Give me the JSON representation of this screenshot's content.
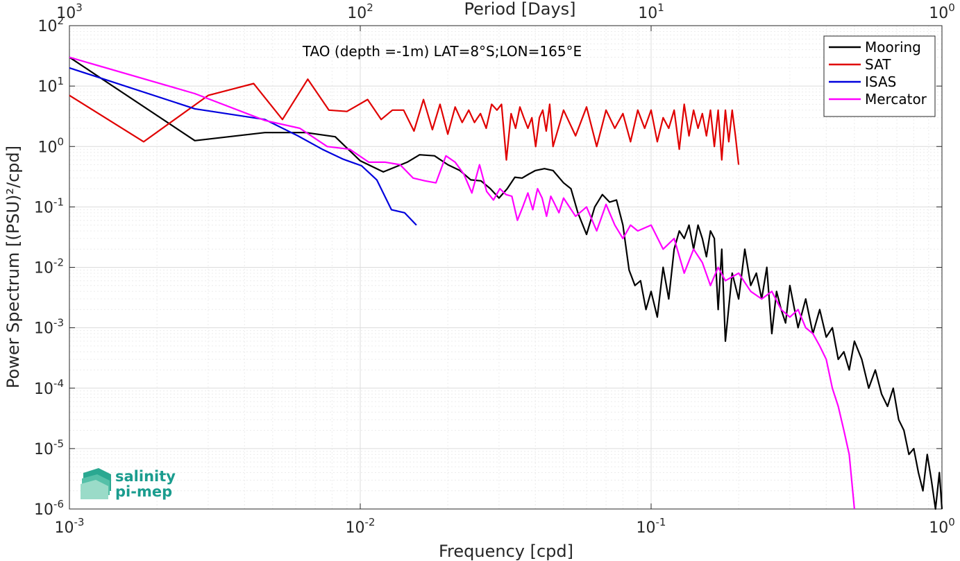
{
  "chart_data": {
    "type": "line",
    "title": "TAO (depth =-1m) LAT=8°S;LON=165°E",
    "xlabel": "Frequency [cpd]",
    "ylabel": "Power Spectrum [(PSU)²/cpd]",
    "top_xlabel": "Period [Days]",
    "x_scale": "log",
    "y_scale": "log",
    "xlim": [
      0.001,
      1
    ],
    "ylim": [
      1e-06,
      100
    ],
    "grid": true,
    "legend_position": "top-right",
    "x_ticks": [
      {
        "base": "10",
        "exp": "-3"
      },
      {
        "base": "10",
        "exp": "-2"
      },
      {
        "base": "10",
        "exp": "-1"
      },
      {
        "base": "10",
        "exp": "0"
      }
    ],
    "top_x_ticks": [
      {
        "base": "10",
        "exp": "3"
      },
      {
        "base": "10",
        "exp": "2"
      },
      {
        "base": "10",
        "exp": "1"
      },
      {
        "base": "10",
        "exp": "0"
      }
    ],
    "y_ticks": [
      {
        "base": "10",
        "exp": "-6"
      },
      {
        "base": "10",
        "exp": "-5"
      },
      {
        "base": "10",
        "exp": "-4"
      },
      {
        "base": "10",
        "exp": "-3"
      },
      {
        "base": "10",
        "exp": "-2"
      },
      {
        "base": "10",
        "exp": "-1"
      },
      {
        "base": "10",
        "exp": "0"
      },
      {
        "base": "10",
        "exp": "1"
      },
      {
        "base": "10",
        "exp": "2"
      }
    ],
    "series": [
      {
        "name": "Mooring",
        "color": "#000000",
        "x": [
          0.001,
          0.0027,
          0.0047,
          0.0065,
          0.0082,
          0.01,
          0.012,
          0.0145,
          0.016,
          0.018,
          0.02,
          0.022,
          0.024,
          0.026,
          0.028,
          0.03,
          0.032,
          0.034,
          0.036,
          0.038,
          0.04,
          0.043,
          0.046,
          0.05,
          0.053,
          0.056,
          0.06,
          0.064,
          0.068,
          0.072,
          0.076,
          0.08,
          0.084,
          0.088,
          0.092,
          0.096,
          0.1,
          0.105,
          0.11,
          0.115,
          0.12,
          0.125,
          0.13,
          0.135,
          0.14,
          0.145,
          0.15,
          0.155,
          0.16,
          0.165,
          0.17,
          0.175,
          0.18,
          0.19,
          0.2,
          0.21,
          0.22,
          0.23,
          0.24,
          0.25,
          0.26,
          0.27,
          0.28,
          0.29,
          0.3,
          0.32,
          0.34,
          0.36,
          0.38,
          0.4,
          0.42,
          0.44,
          0.46,
          0.48,
          0.5,
          0.53,
          0.56,
          0.59,
          0.62,
          0.65,
          0.68,
          0.71,
          0.74,
          0.77,
          0.8,
          0.83,
          0.86,
          0.89,
          0.92,
          0.95,
          0.98,
          1.0
        ],
        "y": [
          30,
          1.25,
          1.7,
          1.7,
          1.45,
          0.58,
          0.38,
          0.55,
          0.73,
          0.7,
          0.5,
          0.4,
          0.28,
          0.27,
          0.2,
          0.14,
          0.2,
          0.31,
          0.3,
          0.35,
          0.4,
          0.43,
          0.4,
          0.25,
          0.2,
          0.08,
          0.035,
          0.1,
          0.16,
          0.12,
          0.13,
          0.05,
          0.009,
          0.005,
          0.006,
          0.002,
          0.004,
          0.0015,
          0.01,
          0.003,
          0.02,
          0.04,
          0.03,
          0.05,
          0.02,
          0.05,
          0.03,
          0.015,
          0.04,
          0.03,
          0.002,
          0.02,
          0.0006,
          0.008,
          0.003,
          0.02,
          0.005,
          0.008,
          0.003,
          0.01,
          0.0008,
          0.004,
          0.002,
          0.0012,
          0.005,
          0.001,
          0.003,
          0.0008,
          0.002,
          0.0007,
          0.001,
          0.0003,
          0.0004,
          0.0002,
          0.0006,
          0.0003,
          0.0001,
          0.0002,
          8e-05,
          5e-05,
          0.0001,
          3e-05,
          2e-05,
          8e-06,
          1e-05,
          4e-06,
          2e-06,
          8e-06,
          3e-06,
          1e-06,
          4e-06,
          1e-06
        ]
      },
      {
        "name": "SAT",
        "color": "#e00000",
        "x": [
          0.001,
          0.0018,
          0.003,
          0.0043,
          0.0054,
          0.0066,
          0.0078,
          0.009,
          0.0106,
          0.0118,
          0.0129,
          0.0141,
          0.0153,
          0.0165,
          0.0177,
          0.0188,
          0.02,
          0.0212,
          0.0224,
          0.0236,
          0.0247,
          0.0259,
          0.0271,
          0.0283,
          0.0295,
          0.0306,
          0.0318,
          0.033,
          0.0342,
          0.0354,
          0.0365,
          0.0377,
          0.0389,
          0.0401,
          0.0413,
          0.0424,
          0.0436,
          0.0448,
          0.046,
          0.05,
          0.055,
          0.06,
          0.065,
          0.07,
          0.075,
          0.08,
          0.085,
          0.09,
          0.095,
          0.1,
          0.105,
          0.11,
          0.115,
          0.12,
          0.125,
          0.13,
          0.135,
          0.14,
          0.145,
          0.15,
          0.155,
          0.16,
          0.165,
          0.17,
          0.175,
          0.18,
          0.185,
          0.19,
          0.195,
          0.2
        ],
        "y": [
          7,
          1.2,
          7,
          11,
          2.8,
          13,
          4,
          3.8,
          6,
          2.8,
          4,
          4,
          1.8,
          6,
          1.9,
          5,
          1.6,
          4.5,
          2.5,
          4,
          2.5,
          3.5,
          2,
          5,
          4,
          5,
          0.6,
          3.5,
          2,
          4.5,
          3,
          2,
          3,
          1,
          3,
          4,
          1.8,
          5,
          1,
          4,
          1.5,
          4.5,
          1,
          4,
          2,
          3.5,
          1.2,
          4,
          2,
          4,
          1.2,
          3,
          2,
          4,
          0.9,
          5,
          1.5,
          4,
          2,
          3.5,
          1.5,
          4,
          1,
          4,
          0.6,
          4,
          1.2,
          4,
          1.5,
          0.5
        ]
      },
      {
        "name": "ISAS",
        "color": "#0000dd",
        "x": [
          0.001,
          0.0027,
          0.0047,
          0.0061,
          0.0074,
          0.0087,
          0.0101,
          0.0114,
          0.0128,
          0.0142,
          0.0156
        ],
        "y": [
          20,
          4.2,
          2.8,
          1.5,
          0.9,
          0.62,
          0.48,
          0.28,
          0.09,
          0.08,
          0.05
        ]
      },
      {
        "name": "Mercator",
        "color": "#ff00ff",
        "x": [
          0.001,
          0.0027,
          0.0047,
          0.0062,
          0.0077,
          0.0092,
          0.0107,
          0.0122,
          0.0137,
          0.0152,
          0.0167,
          0.0182,
          0.0197,
          0.0212,
          0.0227,
          0.0242,
          0.0257,
          0.0272,
          0.0287,
          0.0302,
          0.0317,
          0.0332,
          0.0347,
          0.0362,
          0.0377,
          0.0392,
          0.0407,
          0.0422,
          0.0437,
          0.0452,
          0.0467,
          0.0482,
          0.05,
          0.055,
          0.06,
          0.065,
          0.07,
          0.075,
          0.08,
          0.085,
          0.09,
          0.1,
          0.11,
          0.12,
          0.13,
          0.14,
          0.15,
          0.16,
          0.17,
          0.18,
          0.2,
          0.22,
          0.24,
          0.26,
          0.28,
          0.3,
          0.32,
          0.34,
          0.36,
          0.38,
          0.4,
          0.42,
          0.44,
          0.46,
          0.48,
          0.5
        ],
        "y": [
          30,
          7.5,
          2.7,
          2.0,
          1.0,
          0.9,
          0.55,
          0.55,
          0.5,
          0.3,
          0.27,
          0.25,
          0.7,
          0.55,
          0.35,
          0.17,
          0.5,
          0.18,
          0.13,
          0.2,
          0.16,
          0.15,
          0.06,
          0.1,
          0.17,
          0.09,
          0.2,
          0.14,
          0.07,
          0.15,
          0.11,
          0.08,
          0.14,
          0.07,
          0.1,
          0.04,
          0.11,
          0.05,
          0.03,
          0.05,
          0.04,
          0.05,
          0.02,
          0.03,
          0.008,
          0.02,
          0.012,
          0.005,
          0.01,
          0.006,
          0.008,
          0.004,
          0.003,
          0.004,
          0.002,
          0.0015,
          0.002,
          0.001,
          0.0008,
          0.0005,
          0.0003,
          0.0001,
          5e-05,
          2e-05,
          8e-06,
          1e-06
        ]
      }
    ]
  },
  "logo": {
    "line1": "salinity",
    "line2": "pi-mep"
  }
}
